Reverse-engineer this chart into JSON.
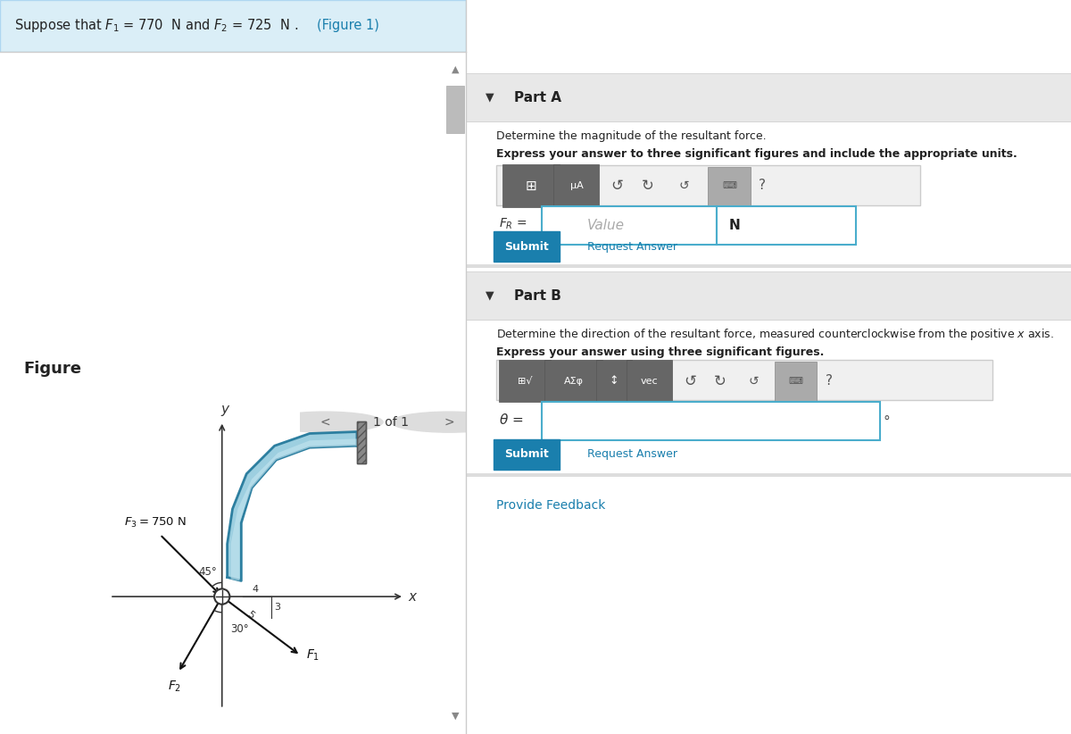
{
  "header_text": "Suppose that $F_1$ = 770  N and $F_2$ = 725  N . (Figure 1)",
  "header_bg": "#d6eaf8",
  "header_border": "#aed6f1",
  "left_bg": "#ffffff",
  "right_bg": "#f5f5f5",
  "divider_color": "#cccccc",
  "part_a_header": "Part A",
  "part_a_q1": "Determine the magnitude of the resultant force.",
  "part_a_q2": "Express your answer to three significant figures and include the appropriate units.",
  "part_a_label": "$F_R$ =",
  "part_a_placeholder": "Value",
  "part_a_unit": "N",
  "part_b_header": "Part B",
  "part_b_q1": "Determine the direction of the resultant force, measured counterclockwise from the positive $x$ axis.",
  "part_b_q2": "Express your answer using three significant figures.",
  "part_b_label": "$\\theta$ =",
  "part_b_unit": "°",
  "submit_color": "#1a7fad",
  "submit_text_color": "#ffffff",
  "link_color": "#1a7fad",
  "figure_label": "Figure",
  "figure_nav": "1 of 1",
  "f3_label": "$F_3 = 750$ N",
  "f1_label": "$F_1$",
  "f2_label": "$F_2$",
  "angle_45": "45°",
  "angle_30": "30°",
  "x_label": "$x$",
  "y_label": "$y$",
  "triangle_nums": [
    "3",
    "4",
    "5"
  ],
  "pipe_color_dark": "#4a9aba",
  "pipe_color_light": "#a8d4e6",
  "wall_color": "#888888",
  "axis_color": "#333333"
}
